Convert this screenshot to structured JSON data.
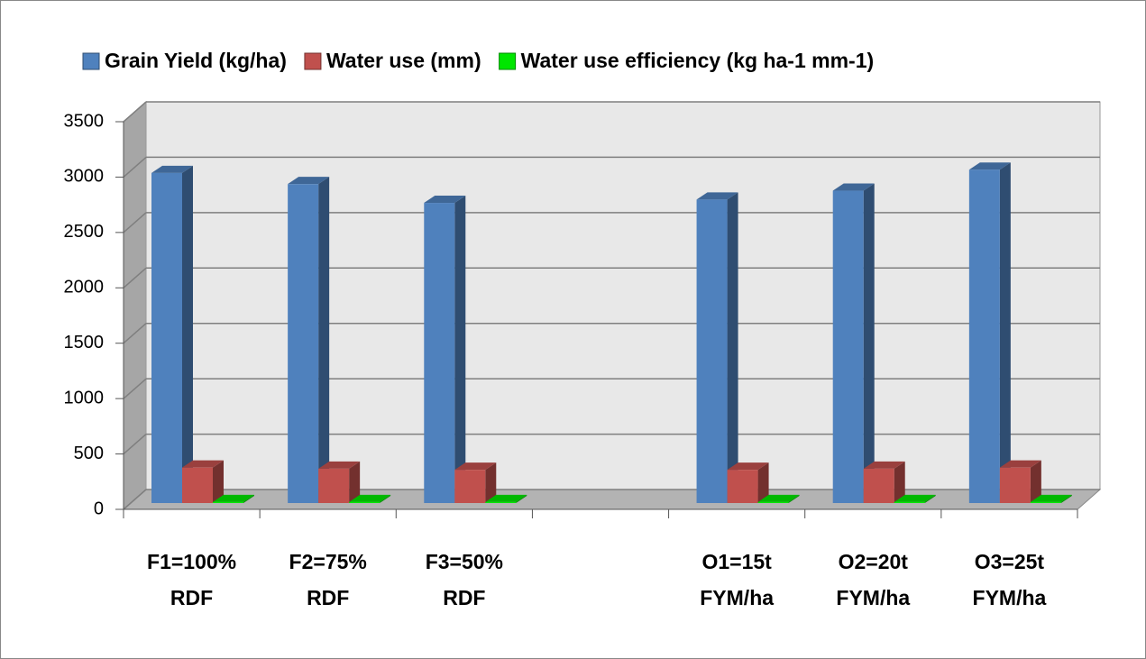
{
  "chart_data": {
    "type": "bar3d",
    "categories": [
      "F1=100% RDF",
      "F2=75% RDF",
      "F3=50% RDF",
      null,
      "O1=15t FYM/ha",
      "O2=20t FYM/ha",
      "O3=25t FYM/ha"
    ],
    "series": [
      {
        "name": "Grain Yield (kg/ha)",
        "color": "#4f81bd",
        "values": [
          2980,
          2880,
          2710,
          null,
          2740,
          2820,
          3010
        ]
      },
      {
        "name": "Water use (mm)",
        "color": "#c0504d",
        "values": [
          320,
          310,
          300,
          null,
          300,
          310,
          320
        ]
      },
      {
        "name": "Water use efficiency (kg ha-1 mm-1)",
        "color": "#00e600",
        "values": [
          9.3,
          9.3,
          9.0,
          null,
          9.1,
          9.1,
          9.4
        ]
      }
    ],
    "ylim": [
      0,
      3500
    ],
    "yticks": [
      0,
      500,
      1000,
      1500,
      2000,
      2500,
      3000,
      3500
    ],
    "grid": true,
    "legend": "top"
  }
}
